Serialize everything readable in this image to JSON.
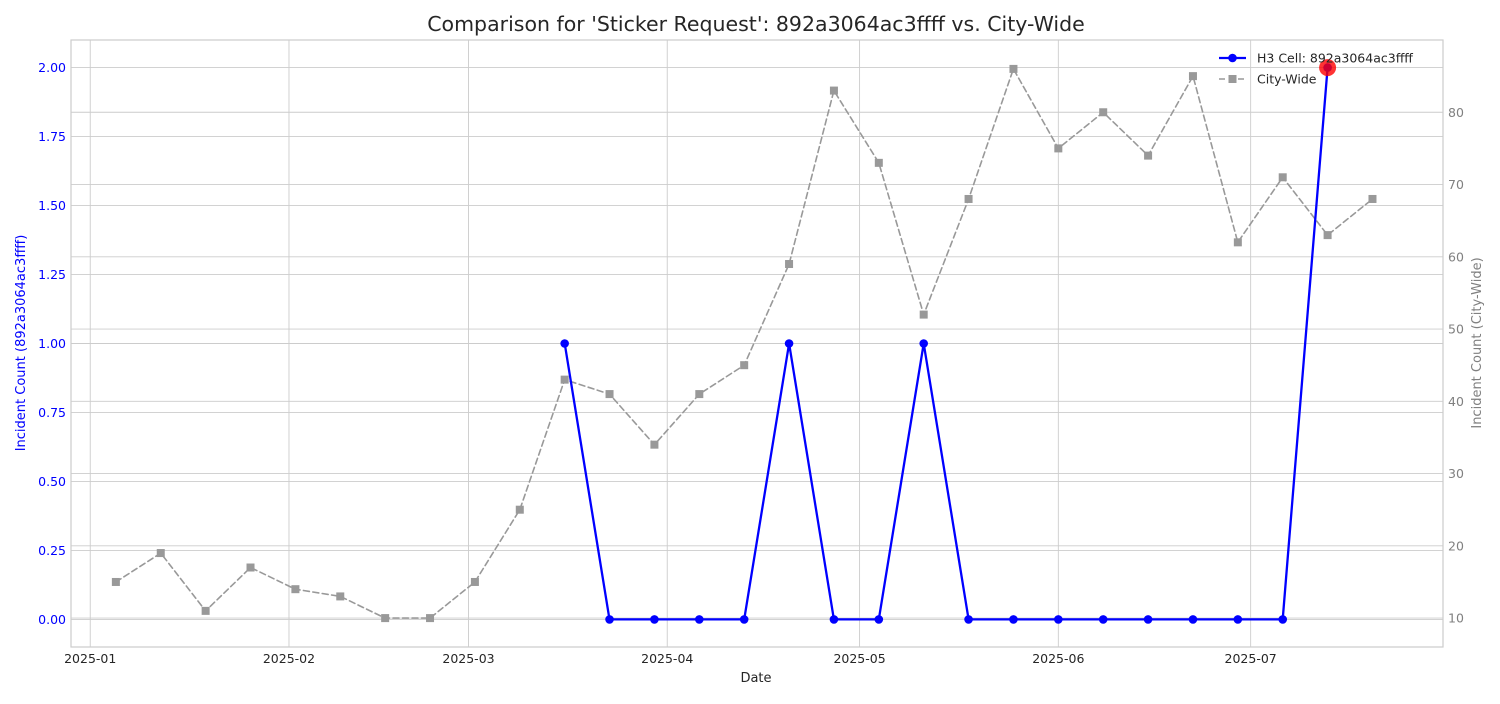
{
  "chart_data": {
    "type": "line",
    "title": "Comparison for 'Sticker Request': 892a3064ac3ffff vs. City-Wide",
    "xlabel": "Date",
    "ylabel_left": "Incident Count (892a3064ac3ffff)",
    "ylabel_right": "Incident Count (City-Wide)",
    "x_ticks": [
      "2025-01-01",
      "2025-02-01",
      "2025-03-01",
      "2025-04-01",
      "2025-05-01",
      "2025-06-01",
      "2025-07-01"
    ],
    "x_tick_labels": [
      "2025-01",
      "2025-02",
      "2025-03",
      "2025-04",
      "2025-05",
      "2025-06",
      "2025-07"
    ],
    "xlim": [
      "2024-12-29",
      "2025-07-31"
    ],
    "ylim_left": [
      -0.1,
      2.1
    ],
    "yticks_left": [
      0.0,
      0.25,
      0.5,
      0.75,
      1.0,
      1.25,
      1.5,
      1.75,
      2.0
    ],
    "ytick_labels_left": [
      "0.00",
      "0.25",
      "0.50",
      "0.75",
      "1.00",
      "1.25",
      "1.50",
      "1.75",
      "2.00"
    ],
    "ylim_right": [
      6,
      90
    ],
    "yticks_right": [
      10,
      20,
      30,
      40,
      50,
      60,
      70,
      80
    ],
    "ytick_labels_right": [
      "10",
      "20",
      "30",
      "40",
      "50",
      "60",
      "70",
      "80"
    ],
    "grid": true,
    "legend_position": "top-right",
    "series": [
      {
        "name": "H3 Cell: 892a3064ac3ffff",
        "axis": "left",
        "color": "#0000ff",
        "style": "solid",
        "marker": "circle",
        "points": [
          [
            "2025-03-16",
            1
          ],
          [
            "2025-03-23",
            0
          ],
          [
            "2025-03-30",
            0
          ],
          [
            "2025-04-06",
            0
          ],
          [
            "2025-04-13",
            0
          ],
          [
            "2025-04-20",
            1
          ],
          [
            "2025-04-27",
            0
          ],
          [
            "2025-05-04",
            0
          ],
          [
            "2025-05-11",
            1
          ],
          [
            "2025-05-18",
            0
          ],
          [
            "2025-05-25",
            0
          ],
          [
            "2025-06-01",
            0
          ],
          [
            "2025-06-08",
            0
          ],
          [
            "2025-06-15",
            0
          ],
          [
            "2025-06-22",
            0
          ],
          [
            "2025-06-29",
            0
          ],
          [
            "2025-07-06",
            0
          ],
          [
            "2025-07-13",
            2
          ]
        ]
      },
      {
        "name": "City-Wide",
        "axis": "right",
        "color": "#999999",
        "style": "dashed",
        "marker": "square",
        "points": [
          [
            "2025-01-05",
            15
          ],
          [
            "2025-01-12",
            19
          ],
          [
            "2025-01-19",
            11
          ],
          [
            "2025-01-26",
            17
          ],
          [
            "2025-02-02",
            14
          ],
          [
            "2025-02-09",
            13
          ],
          [
            "2025-02-16",
            10
          ],
          [
            "2025-02-23",
            10
          ],
          [
            "2025-03-02",
            15
          ],
          [
            "2025-03-09",
            25
          ],
          [
            "2025-03-16",
            43
          ],
          [
            "2025-03-23",
            41
          ],
          [
            "2025-03-30",
            34
          ],
          [
            "2025-04-06",
            41
          ],
          [
            "2025-04-13",
            45
          ],
          [
            "2025-04-20",
            59
          ],
          [
            "2025-04-27",
            83
          ],
          [
            "2025-05-04",
            73
          ],
          [
            "2025-05-11",
            52
          ],
          [
            "2025-05-18",
            68
          ],
          [
            "2025-05-25",
            86
          ],
          [
            "2025-06-01",
            75
          ],
          [
            "2025-06-08",
            80
          ],
          [
            "2025-06-15",
            74
          ],
          [
            "2025-06-22",
            85
          ],
          [
            "2025-06-29",
            62
          ],
          [
            "2025-07-06",
            71
          ],
          [
            "2025-07-13",
            63
          ],
          [
            "2025-07-20",
            68
          ]
        ]
      }
    ],
    "highlight": {
      "series": 0,
      "point_index": 17,
      "color": "#ff0000"
    }
  }
}
